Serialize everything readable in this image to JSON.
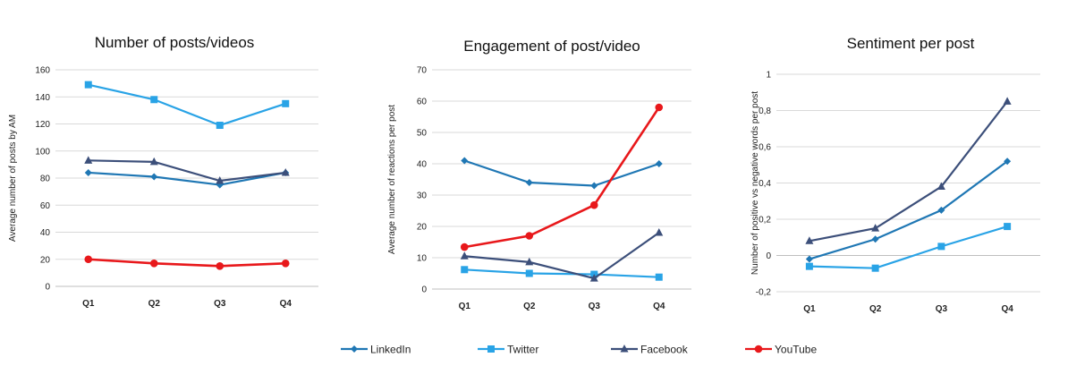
{
  "legend": {
    "entries": [
      {
        "name": "LinkedIn",
        "color": "#1f77b4",
        "marker": "diamond"
      },
      {
        "name": "Twitter",
        "color": "#29a3e6",
        "marker": "square"
      },
      {
        "name": "Facebook",
        "color": "#3c4f7a",
        "marker": "triangle"
      },
      {
        "name": "YouTube",
        "color": "#e8181b",
        "marker": "circle"
      }
    ],
    "placement": "bottom-center"
  },
  "chart_data": [
    {
      "type": "line",
      "title": "Number of posts/videos",
      "xlabel": "",
      "ylabel": "Average number of posts by AM",
      "categories": [
        "Q1",
        "Q2",
        "Q3",
        "Q4"
      ],
      "ylim": [
        0,
        160
      ],
      "yticks": [
        0,
        20,
        40,
        60,
        80,
        100,
        120,
        140,
        160
      ],
      "ytick_labels": [
        "0",
        "20",
        "40",
        "60",
        "80",
        "100",
        "120",
        "140",
        "160"
      ],
      "grid": true,
      "series": [
        {
          "name": "LinkedIn",
          "values": [
            84,
            81,
            75,
            84
          ]
        },
        {
          "name": "Twitter",
          "values": [
            149,
            138,
            119,
            135
          ]
        },
        {
          "name": "Facebook",
          "values": [
            93,
            92,
            78,
            84
          ]
        },
        {
          "name": "YouTube",
          "values": [
            20,
            17,
            15,
            17
          ]
        }
      ]
    },
    {
      "type": "line",
      "title": "Engagement of post/video",
      "xlabel": "",
      "ylabel": "Average number of reactions per post",
      "categories": [
        "Q1",
        "Q2",
        "Q3",
        "Q4"
      ],
      "ylim": [
        0,
        70
      ],
      "yticks": [
        0,
        10,
        20,
        30,
        40,
        50,
        60,
        70
      ],
      "ytick_labels": [
        "0",
        "10",
        "20",
        "30",
        "40",
        "50",
        "60",
        "70"
      ],
      "grid": true,
      "series": [
        {
          "name": "LinkedIn",
          "values": [
            41,
            34,
            33,
            40
          ]
        },
        {
          "name": "Twitter",
          "values": [
            6.2,
            5,
            4.7,
            3.8
          ]
        },
        {
          "name": "Facebook",
          "values": [
            10.5,
            8.6,
            3.4,
            18
          ]
        },
        {
          "name": "YouTube",
          "values": [
            13.4,
            17,
            26.8,
            58
          ]
        }
      ]
    },
    {
      "type": "line",
      "title": "Sentiment per post",
      "xlabel": "",
      "ylabel": "Number of positive vs negative words per post",
      "categories": [
        "Q1",
        "Q2",
        "Q3",
        "Q4"
      ],
      "ylim": [
        -0.2,
        1
      ],
      "yticks": [
        -0.2,
        0,
        0.2,
        0.4,
        0.6,
        0.8,
        1
      ],
      "ytick_labels": [
        "-0,2",
        "0",
        "0,2",
        "0,4",
        "0,6",
        "0,8",
        "1"
      ],
      "grid": true,
      "series": [
        {
          "name": "LinkedIn",
          "values": [
            -0.02,
            0.09,
            0.25,
            0.52
          ]
        },
        {
          "name": "Twitter",
          "values": [
            -0.06,
            -0.07,
            0.05,
            0.16
          ]
        },
        {
          "name": "Facebook",
          "values": [
            0.08,
            0.15,
            0.38,
            0.85
          ]
        }
      ]
    }
  ]
}
